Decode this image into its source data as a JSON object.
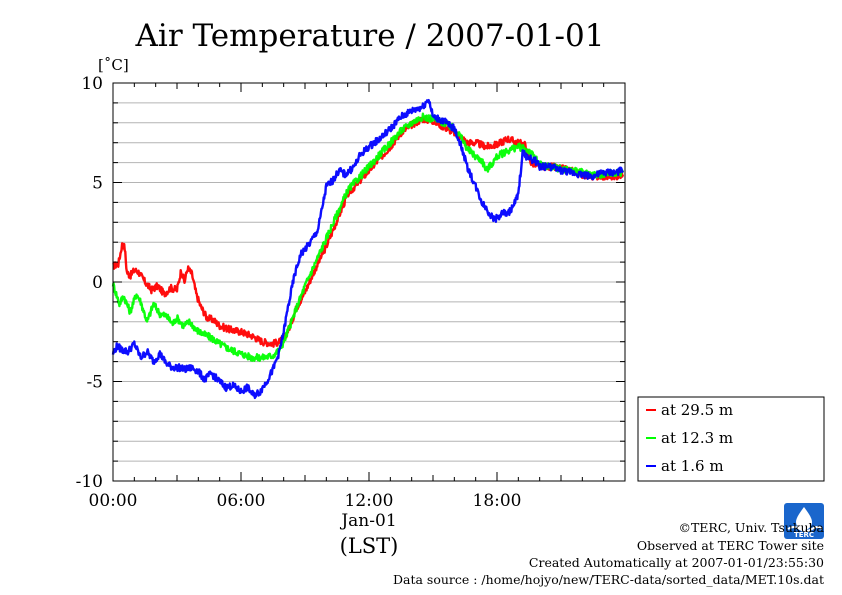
{
  "chart_data": {
    "type": "line",
    "title": "Air Temperature / 2007-01-01",
    "ylabel": "[˚C]",
    "xlabel_date": "Jan-01",
    "xlabel_unit": "(LST)",
    "x_unit": "hours (LST)",
    "xlim": [
      0,
      24
    ],
    "ylim": [
      -10,
      10
    ],
    "y_ticks": [
      {
        "value": 10,
        "label": "10"
      },
      {
        "value": 5,
        "label": "5"
      },
      {
        "value": 0,
        "label": "0"
      },
      {
        "value": -5,
        "label": "-5"
      },
      {
        "value": -10,
        "label": "-10"
      }
    ],
    "x_ticks": [
      {
        "value": 0,
        "label": "00:00"
      },
      {
        "value": 6,
        "label": "06:00"
      },
      {
        "value": 12,
        "label": "12:00"
      },
      {
        "value": 18,
        "label": "18:00"
      }
    ],
    "grid": true,
    "legend_position": "right, below plot area",
    "series": [
      {
        "name": "at 29.5 m",
        "color": "#ff0000",
        "x": [
          0,
          0.25,
          0.45,
          0.55,
          0.65,
          0.8,
          1,
          1.2,
          1.5,
          1.8,
          2.1,
          2.4,
          2.7,
          3,
          3.2,
          3.35,
          3.5,
          3.7,
          3.9,
          4.1,
          4.4,
          4.7,
          5,
          5.5,
          6,
          6.5,
          7,
          7.5,
          7.8,
          8,
          8.3,
          8.6,
          9,
          9.5,
          10,
          10.5,
          11,
          11.5,
          12,
          12.5,
          13,
          13.5,
          14,
          14.5,
          15,
          15.5,
          16,
          16.3,
          16.6,
          17,
          17.5,
          18,
          18.5,
          19,
          19.3,
          19.6,
          19.8,
          20,
          20.5,
          21,
          21.5,
          22,
          22.5,
          23,
          23.5,
          23.9
        ],
        "values": [
          0.8,
          0.9,
          2.0,
          1.7,
          0.5,
          0.3,
          0.6,
          0.5,
          0.0,
          -0.4,
          -0.2,
          -0.6,
          -0.3,
          -0.4,
          0.6,
          0.0,
          0.7,
          0.4,
          -0.6,
          -1.2,
          -1.8,
          -1.9,
          -2.2,
          -2.4,
          -2.5,
          -2.7,
          -3.0,
          -3.1,
          -3.0,
          -2.9,
          -2.2,
          -1.3,
          -0.5,
          0.7,
          1.8,
          3.1,
          4.4,
          5.0,
          5.6,
          6.2,
          6.8,
          7.5,
          7.9,
          8.2,
          8.1,
          7.8,
          7.5,
          7.3,
          7.0,
          7.0,
          6.8,
          6.9,
          7.2,
          7.0,
          6.9,
          6.0,
          5.9,
          5.8,
          5.8,
          5.7,
          5.6,
          5.4,
          5.3,
          5.3,
          5.3,
          5.4
        ]
      },
      {
        "name": "at 12.3 m",
        "color": "#00ff00",
        "x": [
          0,
          0.15,
          0.3,
          0.5,
          0.8,
          1.1,
          1.3,
          1.6,
          1.9,
          2.2,
          2.5,
          2.8,
          3,
          3.3,
          3.6,
          3.9,
          4.2,
          4.6,
          5,
          5.5,
          6,
          6.5,
          7,
          7.5,
          7.8,
          8,
          8.3,
          8.6,
          9,
          9.5,
          10,
          10.5,
          11,
          11.5,
          12,
          12.5,
          13,
          13.5,
          14,
          14.5,
          15,
          15.5,
          16,
          16.3,
          16.6,
          17,
          17.3,
          17.5,
          17.8,
          18,
          18.5,
          19,
          19.5,
          19.8,
          20,
          20.5,
          21,
          21.5,
          22,
          22.5,
          23,
          23.5,
          23.9
        ],
        "values": [
          -0.1,
          -0.6,
          -1.1,
          -0.7,
          -1.5,
          -0.6,
          -1.0,
          -2.0,
          -1.1,
          -1.6,
          -1.7,
          -2.1,
          -1.8,
          -2.2,
          -2.0,
          -2.4,
          -2.6,
          -2.8,
          -3.1,
          -3.4,
          -3.6,
          -3.8,
          -3.8,
          -3.7,
          -3.4,
          -3.0,
          -2.2,
          -1.3,
          -0.2,
          1.0,
          2.2,
          3.4,
          4.6,
          5.2,
          5.8,
          6.4,
          7.0,
          7.6,
          8.0,
          8.3,
          8.2,
          8.0,
          7.7,
          7.3,
          6.7,
          6.3,
          6.1,
          5.6,
          6.0,
          6.3,
          6.6,
          6.8,
          6.6,
          6.2,
          5.9,
          5.8,
          5.7,
          5.6,
          5.5,
          5.4,
          5.4,
          5.5,
          5.5
        ]
      },
      {
        "name": "at 1.6 m",
        "color": "#0000ff",
        "x": [
          0,
          0.2,
          0.4,
          0.7,
          1,
          1.3,
          1.6,
          1.9,
          2.2,
          2.5,
          2.8,
          3.1,
          3.4,
          3.7,
          4,
          4.3,
          4.6,
          5,
          5.3,
          5.6,
          6,
          6.3,
          6.6,
          6.9,
          7.2,
          7.5,
          7.8,
          8,
          8.2,
          8.5,
          8.8,
          9.2,
          9.6,
          10,
          10.3,
          10.6,
          10.9,
          11.3,
          11.6,
          12,
          12.5,
          13,
          13.5,
          14,
          14.5,
          14.8,
          15,
          15.5,
          16,
          16.3,
          16.6,
          17,
          17.3,
          17.5,
          17.8,
          18,
          18.3,
          18.5,
          18.8,
          19,
          19.2,
          19.5,
          19.8,
          20,
          20.5,
          21,
          21.5,
          22,
          22.5,
          23,
          23.5,
          23.9
        ],
        "values": [
          -3.6,
          -3.2,
          -3.4,
          -3.5,
          -3.1,
          -3.8,
          -3.5,
          -4.0,
          -3.6,
          -4.1,
          -4.3,
          -4.3,
          -4.4,
          -4.3,
          -4.5,
          -4.9,
          -4.6,
          -5.0,
          -5.3,
          -5.2,
          -5.5,
          -5.3,
          -5.7,
          -5.5,
          -5.0,
          -4.4,
          -3.5,
          -2.5,
          -1.3,
          0.3,
          1.4,
          1.9,
          2.6,
          4.8,
          5.1,
          5.6,
          5.4,
          5.8,
          6.4,
          6.8,
          7.2,
          7.7,
          8.3,
          8.6,
          8.8,
          9.2,
          8.3,
          8.1,
          7.7,
          6.9,
          5.8,
          4.8,
          4.0,
          3.7,
          3.2,
          3.2,
          3.5,
          3.4,
          3.9,
          4.4,
          6.5,
          6.2,
          6.1,
          5.8,
          5.8,
          5.6,
          5.5,
          5.4,
          5.3,
          5.5,
          5.5,
          5.6
        ]
      }
    ]
  },
  "credits": {
    "copyright": "©TERC, Univ. Tsukuba",
    "site": "Observed at TERC Tower site",
    "created": "Created Automatically at 2007-01-01/23:55:30",
    "source": "Data source : /home/hojyo/new/TERC-data/sorted_data/MET.10s.dat"
  },
  "logo": {
    "text": "TERC",
    "color": "#1a66cc"
  }
}
